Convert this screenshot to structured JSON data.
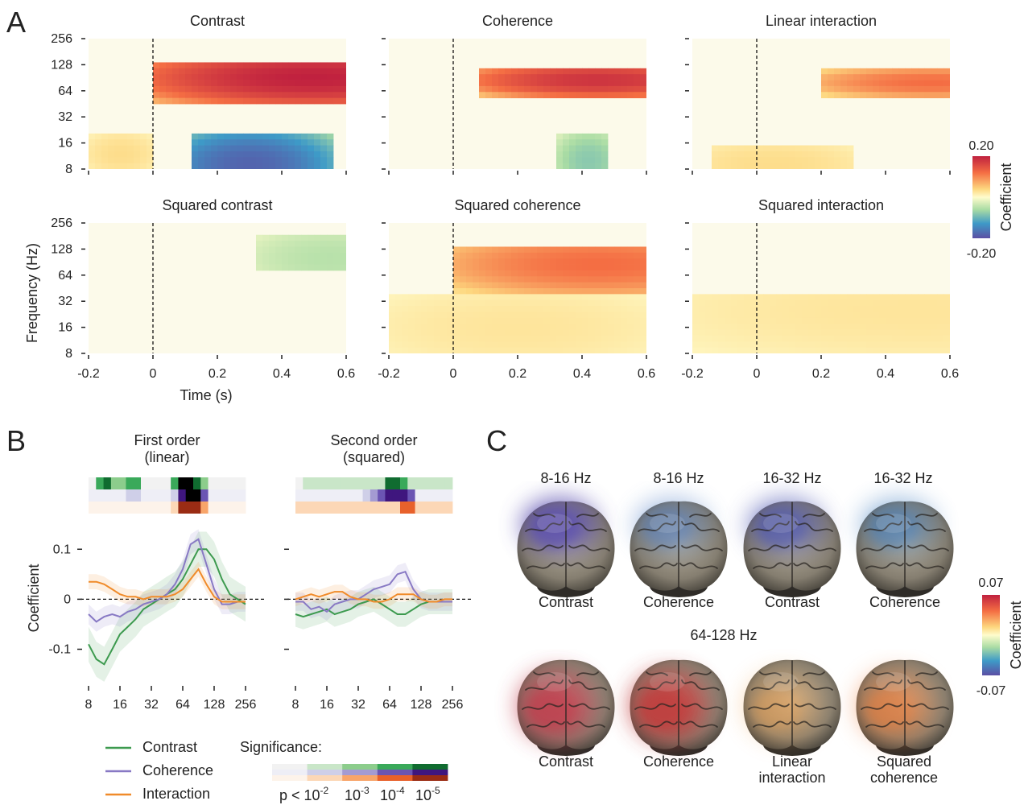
{
  "panel_letters": [
    "A",
    "B",
    "C"
  ],
  "chart_data": [
    {
      "type": "heatmap",
      "panel": "A",
      "xlabel": "Time (s)",
      "ylabel": "Frequency (Hz)",
      "x_ticks": [
        "-0.2",
        "0",
        "0.2",
        "0.4",
        "0.6"
      ],
      "y_ticks": [
        "256",
        "128",
        "64",
        "32",
        "16",
        "8"
      ],
      "xlim": [
        -0.2,
        0.6
      ],
      "ylim_hz": [
        8,
        256
      ],
      "y_scale": "log2",
      "event_line_x": 0,
      "colorbar": {
        "label": "Coefficient",
        "max": "0.20",
        "min": "-0.20",
        "colors": [
          "#c0213f",
          "#f46d43",
          "#fdd77f",
          "#fffccc",
          "#aadca4",
          "#3e9ac7",
          "#5b4fa4"
        ]
      },
      "maps": [
        {
          "title": "Contrast",
          "blobs": [
            {
              "t": [
                0.0,
                0.6
              ],
              "f": [
                45,
                140
              ],
              "peak_t": 0.5,
              "peak_f": 90,
              "value": 0.2
            },
            {
              "t": [
                0.13,
                0.55
              ],
              "f": [
                7,
                22
              ],
              "peak_t": 0.3,
              "peak_f": 9,
              "value": -0.18
            },
            {
              "t": [
                -0.2,
                0.0
              ],
              "f": [
                8,
                20
              ],
              "peak_t": -0.1,
              "peak_f": 12,
              "value": 0.04
            }
          ]
        },
        {
          "title": "Coherence",
          "blobs": [
            {
              "t": [
                0.08,
                0.6
              ],
              "f": [
                55,
                120
              ],
              "peak_t": 0.45,
              "peak_f": 85,
              "value": 0.18
            },
            {
              "t": [
                0.33,
                0.49
              ],
              "f": [
                7,
                20
              ],
              "peak_t": 0.42,
              "peak_f": 10,
              "value": -0.08
            }
          ]
        },
        {
          "title": "Linear interaction",
          "blobs": [
            {
              "t": [
                0.2,
                0.6
              ],
              "f": [
                55,
                110
              ],
              "peak_t": 0.55,
              "peak_f": 80,
              "value": 0.12
            },
            {
              "t": [
                -0.15,
                0.3
              ],
              "f": [
                7,
                16
              ],
              "peak_t": 0.05,
              "peak_f": 9,
              "value": 0.04
            }
          ]
        },
        {
          "title": "Squared contrast",
          "blobs": [
            {
              "t": [
                0.33,
                0.6
              ],
              "f": [
                70,
                200
              ],
              "peak_t": 0.55,
              "peak_f": 100,
              "value": -0.05
            }
          ]
        },
        {
          "title": "Squared coherence",
          "blobs": [
            {
              "t": [
                0.0,
                0.6
              ],
              "f": [
                40,
                128
              ],
              "peak_t": 0.45,
              "peak_f": 85,
              "value": 0.12
            },
            {
              "t": [
                -0.2,
                0.6
              ],
              "f": [
                8,
                40
              ],
              "peak_t": 0.2,
              "peak_f": 16,
              "value": 0.03
            }
          ]
        },
        {
          "title": "Squared interaction",
          "blobs": [
            {
              "t": [
                -0.2,
                0.6
              ],
              "f": [
                8,
                40
              ],
              "peak_t": 0.5,
              "peak_f": 25,
              "value": 0.03
            }
          ]
        }
      ]
    },
    {
      "type": "line",
      "panel": "B",
      "ylabel": "Coefficient",
      "x_scale": "log2",
      "x_ticks": [
        "8",
        "16",
        "32",
        "64",
        "128",
        "256"
      ],
      "y_ticks": [
        "0.1",
        "0",
        "-0.1"
      ],
      "ylim": [
        -0.17,
        0.16
      ],
      "x": [
        8,
        9.5,
        11.3,
        13.5,
        16,
        19,
        22.6,
        26.9,
        32,
        38,
        45,
        54,
        64,
        76,
        90.5,
        108,
        128,
        152,
        181,
        215,
        256
      ],
      "panels": [
        {
          "title": "First order\n(linear)",
          "series": [
            {
              "name": "Contrast",
              "color": "#3d9a4f",
              "values": [
                -0.09,
                -0.12,
                -0.13,
                -0.1,
                -0.07,
                -0.055,
                -0.04,
                -0.02,
                -0.01,
                0.0,
                0.01,
                0.02,
                0.04,
                0.07,
                0.1,
                0.1,
                0.08,
                0.04,
                0.01,
                0.0,
                -0.01
              ],
              "band": 0.035
            },
            {
              "name": "Coherence",
              "color": "#8879c4",
              "values": [
                -0.03,
                -0.045,
                -0.035,
                -0.03,
                -0.035,
                -0.025,
                -0.02,
                -0.01,
                -0.005,
                0.0,
                0.01,
                0.03,
                0.06,
                0.11,
                0.12,
                0.07,
                0.02,
                -0.01,
                -0.01,
                -0.005,
                -0.005
              ],
              "band": 0.02
            },
            {
              "name": "Interaction",
              "color": "#f08b2a",
              "values": [
                0.035,
                0.035,
                0.03,
                0.02,
                0.01,
                0.005,
                0.005,
                0.0,
                0.005,
                0.005,
                0.005,
                0.01,
                0.02,
                0.04,
                0.06,
                0.03,
                0.005,
                -0.005,
                -0.005,
                -0.005,
                -0.005
              ],
              "band": 0.015
            }
          ],
          "significance": [
            {
              "series": "Contrast",
              "levels": [
                0,
                3,
                4,
                2,
                2,
                3,
                3,
                0,
                0,
                0,
                0,
                3,
                5,
                5,
                4,
                2,
                0,
                0,
                0,
                0,
                0
              ]
            },
            {
              "series": "Coherence",
              "levels": [
                0,
                0,
                0,
                0,
                0,
                1,
                1,
                0,
                0,
                0,
                0,
                1,
                4,
                5,
                5,
                3,
                0,
                0,
                0,
                0,
                0
              ]
            },
            {
              "series": "Interaction",
              "levels": [
                0,
                0,
                0,
                0,
                0,
                0,
                0,
                0,
                0,
                0,
                0,
                1,
                4,
                4,
                4,
                2,
                0,
                0,
                0,
                0,
                0
              ]
            }
          ]
        },
        {
          "title": "Second order\n(squared)",
          "series": [
            {
              "name": "Contrast",
              "color": "#3d9a4f",
              "values": [
                -0.03,
                -0.035,
                -0.03,
                -0.025,
                -0.02,
                -0.03,
                -0.025,
                -0.02,
                -0.01,
                -0.005,
                0.0,
                -0.01,
                -0.02,
                -0.03,
                -0.03,
                -0.02,
                -0.01,
                -0.005,
                -0.005,
                -0.005,
                -0.005
              ],
              "band": 0.025
            },
            {
              "name": "Coherence",
              "color": "#8879c4",
              "values": [
                -0.005,
                -0.005,
                -0.02,
                -0.015,
                -0.025,
                -0.01,
                -0.005,
                0.0,
                0.0,
                0.01,
                0.02,
                0.025,
                0.03,
                0.05,
                0.055,
                0.02,
                0.0,
                -0.005,
                -0.005,
                -0.005,
                -0.005
              ],
              "band": 0.018
            },
            {
              "name": "Interaction",
              "color": "#f08b2a",
              "values": [
                0.0,
                0.005,
                0.01,
                0.005,
                0.01,
                0.015,
                0.015,
                0.005,
                0.0,
                0.0,
                -0.005,
                -0.005,
                0.0,
                0.01,
                0.01,
                0.01,
                0.0,
                -0.005,
                -0.005,
                0.0,
                0.0
              ],
              "band": 0.014
            }
          ],
          "significance": [
            {
              "series": "Contrast",
              "levels": [
                0,
                1,
                1,
                1,
                1,
                1,
                1,
                1,
                1,
                1,
                1,
                1,
                4,
                4,
                3,
                1,
                1,
                1,
                1,
                1,
                1
              ]
            },
            {
              "series": "Coherence",
              "levels": [
                0,
                0,
                0,
                0,
                0,
                0,
                0,
                0,
                0,
                1,
                2,
                3,
                4,
                4,
                4,
                3,
                0,
                0,
                0,
                0,
                0
              ]
            },
            {
              "series": "Interaction",
              "levels": [
                1,
                1,
                1,
                1,
                1,
                1,
                1,
                1,
                1,
                1,
                1,
                1,
                1,
                1,
                3,
                3,
                1,
                1,
                1,
                1,
                1
              ]
            }
          ]
        }
      ],
      "legend": [
        "Contrast",
        "Coherence",
        "Interaction"
      ],
      "significance_legend": {
        "title": "Significance:",
        "labels": [
          "p < 10",
          "10",
          "10",
          "10"
        ],
        "exponents": [
          "-2",
          "-3",
          "-4",
          "-5"
        ],
        "green": [
          "#f2f2f2",
          "#c9e6c8",
          "#8ccd8c",
          "#3aa95a",
          "#106c30"
        ],
        "purple": [
          "#eeeef6",
          "#cfcfe8",
          "#a49bd2",
          "#6b55b3",
          "#3f167e"
        ],
        "orange": [
          "#fdf3ea",
          "#fcd7b6",
          "#f8a56a",
          "#e8612b",
          "#9a2c14"
        ]
      }
    }
  ],
  "panel_c": {
    "top_row": [
      {
        "freq": "8-16 Hz",
        "caption": "Contrast",
        "tone": "#5b4fb0",
        "strength": 0.9
      },
      {
        "freq": "8-16 Hz",
        "caption": "Coherence",
        "tone": "#4d7cc4",
        "strength": 0.5
      },
      {
        "freq": "16-32 Hz",
        "caption": "Contrast",
        "tone": "#4c55b2",
        "strength": 0.7
      },
      {
        "freq": "16-32 Hz",
        "caption": "Coherence",
        "tone": "#3f7dc0",
        "strength": 0.55
      }
    ],
    "bottom_label": "64-128 Hz",
    "bottom_row": [
      {
        "caption1": "Contrast",
        "caption2": "",
        "tone": "#c23a4b",
        "strength": 0.85
      },
      {
        "caption1": "Coherence",
        "caption2": "",
        "tone": "#c23a3a",
        "strength": 0.95
      },
      {
        "caption1": "Linear",
        "caption2": "interaction",
        "tone": "#f3a24d",
        "strength": 0.45
      },
      {
        "caption1": "Squared",
        "caption2": "coherence",
        "tone": "#ef7a35",
        "strength": 0.6
      }
    ],
    "colorbar": {
      "label": "Coefficient",
      "max": "0.07",
      "min": "-0.07"
    }
  }
}
